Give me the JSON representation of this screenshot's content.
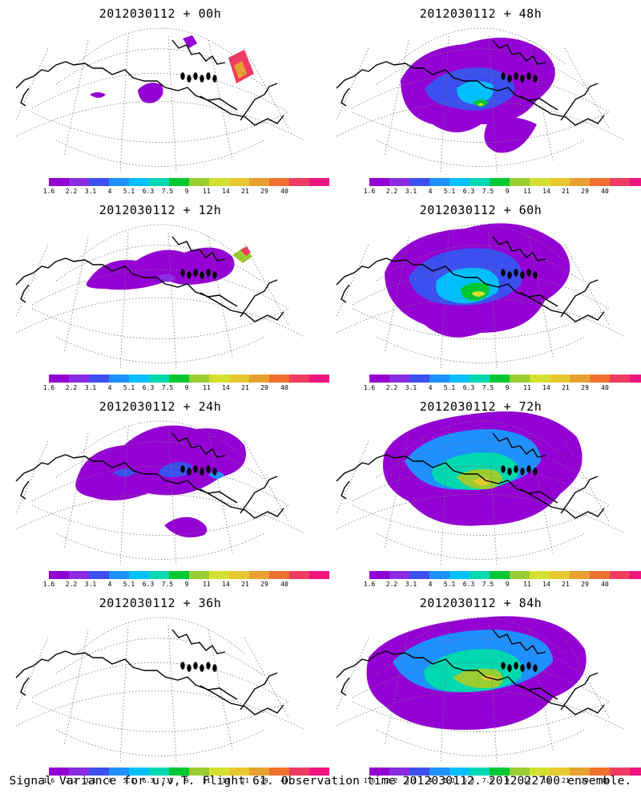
{
  "panels": [
    {
      "title": "2012030112 + 00h",
      "level": 0
    },
    {
      "title": "2012030112 + 48h",
      "level": 3
    },
    {
      "title": "2012030112 + 12h",
      "level": 1
    },
    {
      "title": "2012030112 + 60h",
      "level": 4
    },
    {
      "title": "2012030112 + 24h",
      "level": 2
    },
    {
      "title": "2012030112 + 72h",
      "level": 5
    },
    {
      "title": "2012030112 + 36h",
      "level": 2
    },
    {
      "title": "2012030112 + 84h",
      "level": 6
    }
  ],
  "colorbar": {
    "colors": [
      "#9400d3",
      "#8a2be2",
      "#3c50f0",
      "#1e90ff",
      "#00bfff",
      "#00d8b0",
      "#00c832",
      "#9acd32",
      "#d4e030",
      "#e8c830",
      "#e8a030",
      "#f07030",
      "#f03c60",
      "#f01480"
    ],
    "ticks": [
      "1.6",
      "2.2",
      "3.1",
      "4",
      "5.1",
      "6.3",
      "7.5",
      "9",
      "11",
      "14",
      "21",
      "29",
      "40"
    ]
  },
  "footer": "Signal Variance for u,v,T. Flight 61. Observation time 2012030112. 2012022700 ensemble."
}
